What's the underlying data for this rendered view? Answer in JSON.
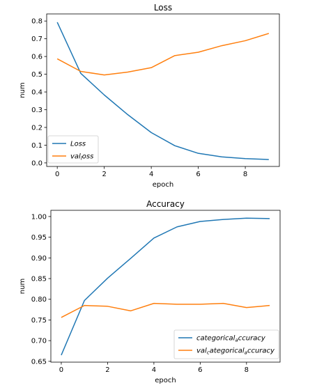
{
  "chart_data": [
    {
      "type": "line",
      "title": "Loss",
      "xlabel": "epoch",
      "ylabel": "num",
      "x": [
        0,
        1,
        2,
        3,
        4,
        5,
        6,
        7,
        8,
        9
      ],
      "xlim": [
        -0.45,
        9.45
      ],
      "ylim": [
        -0.02,
        0.84
      ],
      "xticks": [
        0,
        2,
        4,
        6,
        8
      ],
      "yticks": [
        0.0,
        0.1,
        0.2,
        0.3,
        0.4,
        0.5,
        0.6,
        0.7,
        0.8
      ],
      "ytick_labels": [
        "0.0",
        "0.1",
        "0.2",
        "0.3",
        "0.4",
        "0.5",
        "0.6",
        "0.7",
        "0.8"
      ],
      "legend_position": "lower-left",
      "grid": false,
      "series": [
        {
          "name": "Loss",
          "color": "#1f77b4",
          "values": [
            0.793,
            0.505,
            0.383,
            0.272,
            0.171,
            0.097,
            0.054,
            0.034,
            0.024,
            0.019
          ]
        },
        {
          "name": "val_loss",
          "legend_label": "val_loss",
          "legend_main": "val",
          "legend_sub": "l",
          "legend_rest": "oss",
          "color": "#ff7f0e",
          "values": [
            0.587,
            0.516,
            0.496,
            0.512,
            0.537,
            0.605,
            0.624,
            0.661,
            0.689,
            0.73
          ]
        }
      ]
    },
    {
      "type": "line",
      "title": "Accuracy",
      "xlabel": "epoch",
      "ylabel": "num",
      "x": [
        0,
        1,
        2,
        3,
        4,
        5,
        6,
        7,
        8,
        9
      ],
      "xlim": [
        -0.45,
        9.45
      ],
      "ylim": [
        0.648,
        1.015
      ],
      "xticks": [
        0,
        2,
        4,
        6,
        8
      ],
      "yticks": [
        0.65,
        0.7,
        0.75,
        0.8,
        0.85,
        0.9,
        0.95,
        1.0
      ],
      "ytick_labels": [
        "0.65",
        "0.70",
        "0.75",
        "0.80",
        "0.85",
        "0.90",
        "0.95",
        "1.00"
      ],
      "legend_position": "lower-right",
      "grid": false,
      "series": [
        {
          "name": "categorical_accuracy",
          "legend_main": "categorical",
          "legend_sub": "a",
          "legend_rest": "ccuracy",
          "color": "#1f77b4",
          "values": [
            0.665,
            0.797,
            0.851,
            0.899,
            0.948,
            0.975,
            0.988,
            0.993,
            0.996,
            0.995
          ]
        },
        {
          "name": "val_categorical_accuracy",
          "legend_main": "val",
          "legend_sub": "c",
          "legend_rest": "ategorical",
          "legend_sub2": "a",
          "legend_rest2": "ccuracy",
          "color": "#ff7f0e",
          "values": [
            0.756,
            0.785,
            0.783,
            0.772,
            0.79,
            0.788,
            0.788,
            0.79,
            0.78,
            0.785
          ]
        }
      ]
    }
  ]
}
